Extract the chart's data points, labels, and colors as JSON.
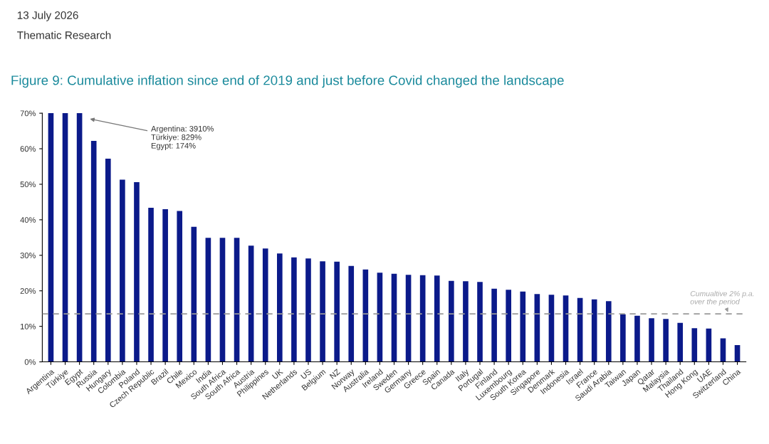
{
  "chart_data": {
    "type": "bar",
    "title": "Figure 9: Cumulative inflation since end of 2019 and just before Covid changed the landscape",
    "categories": [
      "Argentina",
      "Türkiye",
      "Egypt",
      "Russia",
      "Hungary",
      "Colombia",
      "Poland",
      "Czech Republic",
      "Brazil",
      "Chile",
      "Mexico",
      "India",
      "South Africa",
      "South Africa",
      "Austria",
      "Philippines",
      "UK",
      "Netherlands",
      "US",
      "Belgium",
      "NZ",
      "Norway",
      "Australia",
      "Ireland",
      "Sweden",
      "Germany",
      "Greece",
      "Spain",
      "Canada",
      "Italy",
      "Portugal",
      "Finland",
      "Luxembourg",
      "South Korea",
      "Singapore",
      "Denmark",
      "Indonesia",
      "Israel",
      "France",
      "Saudi Arabia",
      "Taiwan",
      "Japan",
      "Qatar",
      "Malaysia",
      "Thailand",
      "Hong Kong",
      "UAE",
      "Switzerland",
      "China"
    ],
    "values": [
      70,
      70,
      70,
      62.2,
      57.2,
      51.3,
      50.6,
      43.4,
      43.0,
      42.5,
      38.0,
      34.9,
      34.9,
      34.9,
      32.7,
      31.9,
      30.5,
      29.4,
      29.1,
      28.3,
      28.2,
      27.0,
      26.0,
      25.1,
      24.8,
      24.5,
      24.4,
      24.3,
      22.8,
      22.7,
      22.5,
      20.6,
      20.3,
      19.8,
      19.1,
      18.9,
      18.7,
      18.0,
      17.6,
      17.1,
      13.4,
      13.0,
      12.3,
      12.1,
      11.0,
      9.5,
      9.4,
      6.6,
      4.7
    ],
    "color": "#0b1a8a",
    "ylim": [
      0,
      70
    ],
    "yticks": [
      {
        "value": 0,
        "label": "0%"
      },
      {
        "value": 10,
        "label": "10%"
      },
      {
        "value": 20,
        "label": "20%"
      },
      {
        "value": 30,
        "label": "30%"
      },
      {
        "value": 40,
        "label": "40%"
      },
      {
        "value": 50,
        "label": "50%"
      },
      {
        "value": 60,
        "label": "60%"
      },
      {
        "value": 70,
        "label": "70%"
      }
    ],
    "grid": false,
    "legend": false,
    "ref_lines": [
      {
        "axis": "y",
        "value": 13.5,
        "label": "Cumualtive 2% p.a. over the period",
        "color": "#999999",
        "line_style": "dashed"
      }
    ],
    "annotations": [
      "13 July 2026",
      "Thematic Research",
      "Argentina: 3910%\nTürkiye: 829%\nEgypt: 174%"
    ]
  }
}
